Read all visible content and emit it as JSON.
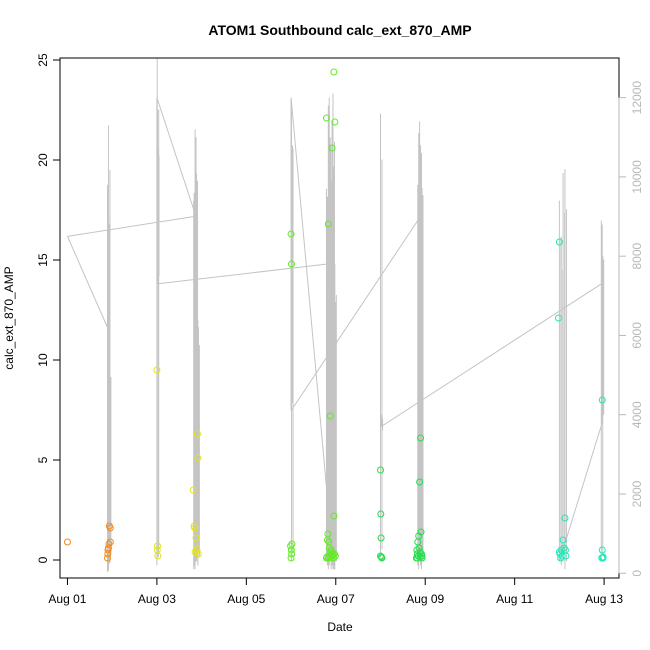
{
  "chart_data": {
    "type": "scatter",
    "title": "ATOM1 Southbound calc_ext_870_AMP",
    "xlabel": "Date",
    "ylabel": "calc_ext_870_AMP",
    "y2label": "",
    "x_tick_labels": [
      "Aug 01",
      "Aug 03",
      "Aug 05",
      "Aug 07",
      "Aug 09",
      "Aug 11",
      "Aug 13"
    ],
    "y_tick_labels": [
      "0",
      "5",
      "10",
      "15",
      "20",
      "25"
    ],
    "y2_tick_labels": [
      "0",
      "2000",
      "4000",
      "6000",
      "8000",
      "10000",
      "12000"
    ],
    "xlim": [
      "2023-07-31T20:00",
      "2023-08-13T08:00"
    ],
    "ylim": [
      -0.9,
      25.1
    ],
    "y2lim": [
      -120,
      13000
    ],
    "grid": false,
    "colors": {
      "gray_line": "#c4c4c4",
      "axis": "#000000",
      "right_axis": "#b8b8b8"
    },
    "series": [
      {
        "color": "#f08a1f",
        "points": [
          [
            "2023-08-01T00:00",
            0.9
          ],
          [
            "2023-08-01T21:30",
            0.1
          ],
          [
            "2023-08-01T21:40",
            0.3
          ],
          [
            "2023-08-01T21:45",
            0.5
          ],
          [
            "2023-08-01T22:00",
            0.6
          ],
          [
            "2023-08-01T22:15",
            0.8
          ],
          [
            "2023-08-01T22:30",
            1.7
          ],
          [
            "2023-08-01T23:00",
            1.6
          ],
          [
            "2023-08-01T23:00",
            0.9
          ]
        ]
      },
      {
        "color": "#e3e31a",
        "points": [
          [
            "2023-08-03T00:00",
            9.5
          ],
          [
            "2023-08-03T00:10",
            0.5
          ],
          [
            "2023-08-03T00:20",
            0.7
          ],
          [
            "2023-08-03T00:30",
            0.2
          ],
          [
            "2023-08-03T19:30",
            3.5
          ],
          [
            "2023-08-03T20:00",
            1.7
          ],
          [
            "2023-08-03T20:15",
            1.6
          ],
          [
            "2023-08-03T20:30",
            0.4
          ],
          [
            "2023-08-03T21:00",
            1.1
          ],
          [
            "2023-08-03T21:15",
            0.6
          ],
          [
            "2023-08-03T21:45",
            6.3
          ],
          [
            "2023-08-03T22:00",
            5.1
          ],
          [
            "2023-08-03T22:15",
            0.3
          ],
          [
            "2023-08-03T21:30",
            0.5
          ]
        ]
      },
      {
        "color": "#60ec22",
        "points": [
          [
            "2023-08-06T00:00",
            16.3
          ],
          [
            "2023-08-06T00:15",
            14.8
          ],
          [
            "2023-08-05T23:45",
            0.7
          ],
          [
            "2023-08-06T00:00",
            0.1
          ],
          [
            "2023-08-06T00:20",
            0.3
          ],
          [
            "2023-08-06T00:30",
            0.8
          ],
          [
            "2023-08-06T00:10",
            0.5
          ],
          [
            "2023-08-06T19:00",
            22.1
          ],
          [
            "2023-08-06T20:00",
            16.8
          ],
          [
            "2023-08-06T21:00",
            7.2
          ],
          [
            "2023-08-06T23:00",
            24.4
          ],
          [
            "2023-08-06T22:00",
            20.6
          ],
          [
            "2023-08-06T23:30",
            21.9
          ],
          [
            "2023-08-06T23:00",
            2.2
          ],
          [
            "2023-08-06T19:30",
            1.0
          ],
          [
            "2023-08-06T19:45",
            1.3
          ],
          [
            "2023-08-06T20:15",
            0.9
          ],
          [
            "2023-08-06T20:30",
            0.6
          ],
          [
            "2023-08-06T21:15",
            0.4
          ],
          [
            "2023-08-06T21:30",
            0.5
          ],
          [
            "2023-08-06T22:00",
            0.2
          ],
          [
            "2023-08-06T22:30",
            0.3
          ],
          [
            "2023-08-06T23:15",
            0.3
          ],
          [
            "2023-08-06T19:00",
            0.1
          ],
          [
            "2023-08-06T19:15",
            0.15
          ],
          [
            "2023-08-06T20:00",
            0.1
          ],
          [
            "2023-08-06T20:45",
            0.2
          ],
          [
            "2023-08-06T22:45",
            0.1
          ],
          [
            "2023-08-06T23:45",
            0.2
          ]
        ]
      },
      {
        "color": "#22e04a",
        "points": [
          [
            "2023-08-08T00:00",
            4.5
          ],
          [
            "2023-08-08T00:10",
            2.3
          ],
          [
            "2023-08-08T00:20",
            1.1
          ],
          [
            "2023-08-08T00:00",
            0.2
          ],
          [
            "2023-08-08T00:30",
            0.15
          ],
          [
            "2023-08-08T00:45",
            0.1
          ],
          [
            "2023-08-08T20:00",
            0.9
          ],
          [
            "2023-08-08T20:30",
            1.2
          ],
          [
            "2023-08-08T21:00",
            3.9
          ],
          [
            "2023-08-08T21:30",
            6.1
          ],
          [
            "2023-08-08T21:45",
            1.4
          ],
          [
            "2023-08-08T19:30",
            0.5
          ],
          [
            "2023-08-08T19:45",
            0.3
          ],
          [
            "2023-08-08T20:15",
            0.2
          ],
          [
            "2023-08-08T20:45",
            0.6
          ],
          [
            "2023-08-08T21:15",
            0.4
          ],
          [
            "2023-08-08T22:00",
            0.3
          ],
          [
            "2023-08-08T22:15",
            0.2
          ],
          [
            "2023-08-08T19:15",
            0.1
          ],
          [
            "2023-08-08T19:40",
            0.1
          ],
          [
            "2023-08-08T21:20",
            0.15
          ],
          [
            "2023-08-08T22:20",
            0.1
          ]
        ]
      },
      {
        "color": "#22e8b8",
        "points": [
          [
            "2023-08-12T00:00",
            15.9
          ],
          [
            "2023-08-11T23:30",
            12.1
          ],
          [
            "2023-08-12T03:00",
            2.1
          ],
          [
            "2023-08-12T02:00",
            1.0
          ],
          [
            "2023-08-12T00:00",
            0.4
          ],
          [
            "2023-08-12T00:20",
            0.3
          ],
          [
            "2023-08-12T00:40",
            0.1
          ],
          [
            "2023-08-12T01:00",
            0.5
          ],
          [
            "2023-08-12T01:30",
            0.2
          ],
          [
            "2023-08-12T02:30",
            0.6
          ],
          [
            "2023-08-12T03:15",
            0.5
          ],
          [
            "2023-08-12T03:30",
            0.2
          ],
          [
            "2023-08-12T23:00",
            8.0
          ],
          [
            "2023-08-12T23:00",
            0.5
          ],
          [
            "2023-08-12T22:45",
            0.1
          ],
          [
            "2023-08-12T23:20",
            0.1
          ],
          [
            "2023-08-12T23:30",
            0.15
          ]
        ]
      }
    ]
  }
}
